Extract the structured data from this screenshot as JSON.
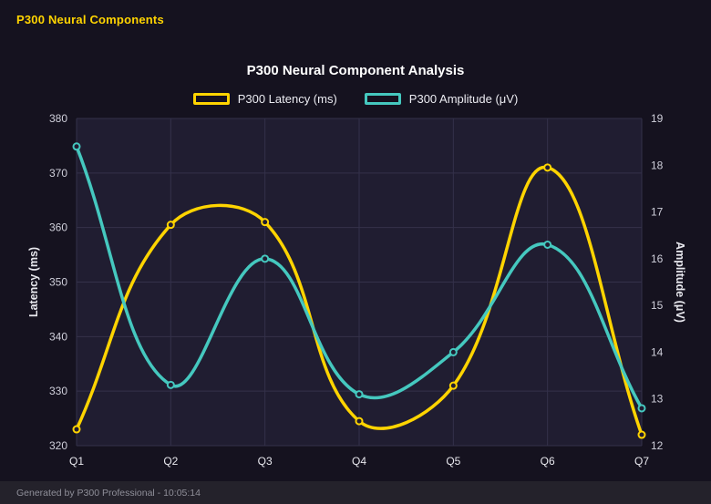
{
  "header": {
    "title": "P300 Neural Components"
  },
  "footer": {
    "text": "Generated by P300 Professional - 10:05:14"
  },
  "chart_data": {
    "type": "line",
    "title": "P300 Neural Component Analysis",
    "categories": [
      "Q1",
      "Q2",
      "Q3",
      "Q4",
      "Q5",
      "Q6",
      "Q7"
    ],
    "series": [
      {
        "name": "P300 Latency (ms)",
        "axis": "left",
        "color": "#ffd400",
        "values": [
          323,
          360.5,
          361,
          324.5,
          331,
          371,
          322
        ]
      },
      {
        "name": "P300 Amplitude (μV)",
        "axis": "right",
        "color": "#45c8bf",
        "values": [
          18.4,
          13.3,
          16.0,
          13.1,
          14.0,
          16.3,
          12.8
        ]
      }
    ],
    "left_axis": {
      "label": "Latency (ms)",
      "min": 320,
      "max": 380,
      "ticks": [
        320,
        330,
        340,
        350,
        360,
        370,
        380
      ]
    },
    "right_axis": {
      "label": "Amplitude (μV)",
      "min": 12,
      "max": 19,
      "ticks": [
        12,
        13,
        14,
        15,
        16,
        17,
        18,
        19
      ]
    },
    "grid": true,
    "legend_position": "top",
    "line_tension": 0.4,
    "colors": {
      "background": "#15121f",
      "plot_background": "#201d31",
      "grid": "#34314a",
      "text": "#e8e8ee",
      "tick": "#cfcfda",
      "accent": "#ffd400"
    }
  }
}
